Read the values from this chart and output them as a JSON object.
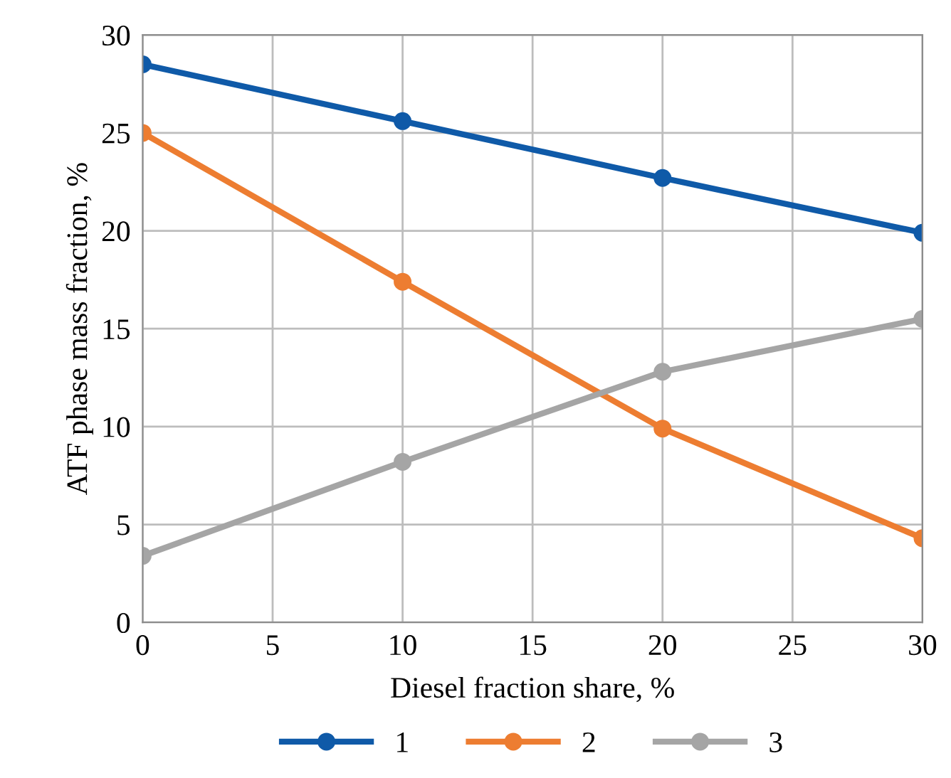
{
  "chart_data": {
    "type": "line",
    "xlabel": "Diesel fraction share, %",
    "ylabel": "ATF phase mass fraction, %",
    "x": [
      0,
      10,
      20,
      30
    ],
    "series": [
      {
        "name": "1",
        "color": "#0f5aa8",
        "values": [
          28.5,
          25.6,
          22.7,
          19.9
        ]
      },
      {
        "name": "2",
        "color": "#ed7d31",
        "values": [
          25.0,
          17.4,
          9.9,
          4.3
        ]
      },
      {
        "name": "3",
        "color": "#a5a5a5",
        "values": [
          3.4,
          8.2,
          12.8,
          15.5
        ]
      }
    ],
    "xlim": [
      0,
      30
    ],
    "xticks": [
      0,
      5,
      10,
      15,
      20,
      25,
      30
    ],
    "ylim": [
      0,
      30
    ],
    "yticks": [
      0,
      5,
      10,
      15,
      20,
      25,
      30
    ],
    "grid": true,
    "legend": "bottom",
    "marker": "circle",
    "line_style": "solid"
  }
}
